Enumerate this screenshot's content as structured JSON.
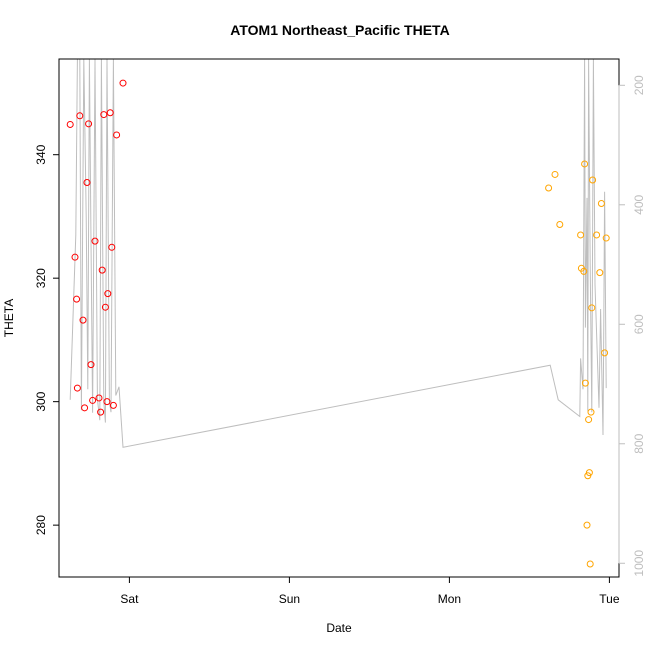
{
  "chart_data": {
    "type": "scatter",
    "title": "ATOM1 Northeast_Pacific THETA",
    "xlabel": "Date",
    "ylabel": "THETA",
    "x_ticks": [
      "Sat",
      "Sun",
      "Mon",
      "Tue"
    ],
    "x_tick_values": [
      1.0,
      2.0,
      3.0,
      4.0
    ],
    "xlim": [
      0.56,
      4.06
    ],
    "ylim": [
      271.6,
      355.5
    ],
    "y_ticks": [
      280,
      300,
      320,
      340
    ],
    "y2_label": "",
    "y2_ticks": [
      200,
      400,
      600,
      800,
      1000
    ],
    "y2lim": [
      1023,
      156
    ],
    "y2_reversed": true,
    "grid": false,
    "colors": {
      "profile_line": "#bebebe",
      "series_early": "#ff0000",
      "series_late": "#ffa500",
      "axis": "#000000",
      "right_axis": "#bebebe"
    },
    "series": [
      {
        "color": "#ff0000",
        "points": [
          {
            "x": 0.63,
            "y": 344.9
          },
          {
            "x": 0.66,
            "y": 323.4
          },
          {
            "x": 0.67,
            "y": 316.6
          },
          {
            "x": 0.675,
            "y": 302.2
          },
          {
            "x": 0.69,
            "y": 346.3
          },
          {
            "x": 0.71,
            "y": 313.2
          },
          {
            "x": 0.72,
            "y": 299.0
          },
          {
            "x": 0.735,
            "y": 335.5
          },
          {
            "x": 0.745,
            "y": 345.0
          },
          {
            "x": 0.76,
            "y": 306.0
          },
          {
            "x": 0.77,
            "y": 300.2
          },
          {
            "x": 0.785,
            "y": 326.0
          },
          {
            "x": 0.81,
            "y": 300.6
          },
          {
            "x": 0.82,
            "y": 298.3
          },
          {
            "x": 0.83,
            "y": 321.3
          },
          {
            "x": 0.84,
            "y": 346.5
          },
          {
            "x": 0.85,
            "y": 315.3
          },
          {
            "x": 0.86,
            "y": 300.0
          },
          {
            "x": 0.865,
            "y": 317.5
          },
          {
            "x": 0.88,
            "y": 346.8
          },
          {
            "x": 0.89,
            "y": 325.0
          },
          {
            "x": 0.9,
            "y": 299.4
          },
          {
            "x": 0.92,
            "y": 343.2
          },
          {
            "x": 0.96,
            "y": 351.6
          }
        ]
      },
      {
        "color": "#ffa500",
        "points": [
          {
            "x": 3.62,
            "y": 334.6
          },
          {
            "x": 3.66,
            "y": 336.8
          },
          {
            "x": 3.69,
            "y": 328.7
          },
          {
            "x": 3.82,
            "y": 327.0
          },
          {
            "x": 3.825,
            "y": 321.6
          },
          {
            "x": 3.84,
            "y": 321.1
          },
          {
            "x": 3.845,
            "y": 338.5
          },
          {
            "x": 3.85,
            "y": 303.0
          },
          {
            "x": 3.86,
            "y": 280.0
          },
          {
            "x": 3.865,
            "y": 288.0
          },
          {
            "x": 3.87,
            "y": 297.1
          },
          {
            "x": 3.875,
            "y": 288.5
          },
          {
            "x": 3.88,
            "y": 273.7
          },
          {
            "x": 3.885,
            "y": 298.3
          },
          {
            "x": 3.89,
            "y": 315.2
          },
          {
            "x": 3.895,
            "y": 335.9
          },
          {
            "x": 3.92,
            "y": 327.0
          },
          {
            "x": 3.94,
            "y": 320.9
          },
          {
            "x": 3.95,
            "y": 332.1
          },
          {
            "x": 3.97,
            "y": 307.9
          },
          {
            "x": 3.98,
            "y": 326.5
          }
        ]
      }
    ],
    "profile_line": [
      [
        0.63,
        300.3
      ],
      [
        0.665,
        327.0
      ],
      [
        0.675,
        355.5
      ],
      [
        0.69,
        355.5
      ],
      [
        0.7,
        298.6
      ],
      [
        0.715,
        355.5
      ],
      [
        0.73,
        330.0
      ],
      [
        0.74,
        302.0
      ],
      [
        0.75,
        355.5
      ],
      [
        0.76,
        326.0
      ],
      [
        0.77,
        298.2
      ],
      [
        0.785,
        355.5
      ],
      [
        0.8,
        300.4
      ],
      [
        0.815,
        297.0
      ],
      [
        0.825,
        355.5
      ],
      [
        0.84,
        300.0
      ],
      [
        0.85,
        296.6
      ],
      [
        0.86,
        355.5
      ],
      [
        0.875,
        300.0
      ],
      [
        0.885,
        298.3
      ],
      [
        0.9,
        355.5
      ],
      [
        0.915,
        301.0
      ],
      [
        0.935,
        302.4
      ],
      [
        0.96,
        292.6
      ],
      [
        3.63,
        305.9
      ],
      [
        3.68,
        300.3
      ],
      [
        3.815,
        297.6
      ],
      [
        3.82,
        307.0
      ],
      [
        3.835,
        302.0
      ],
      [
        3.845,
        355.5
      ],
      [
        3.85,
        312.0
      ],
      [
        3.86,
        333.0
      ],
      [
        3.865,
        298.5
      ],
      [
        3.87,
        355.5
      ],
      [
        3.88,
        322.0
      ],
      [
        3.89,
        298.3
      ],
      [
        3.9,
        355.5
      ],
      [
        3.91,
        319.0
      ],
      [
        3.925,
        307.0
      ],
      [
        3.935,
        299.0
      ],
      [
        3.945,
        315.0
      ],
      [
        3.96,
        294.6
      ],
      [
        3.965,
        312.7
      ],
      [
        3.97,
        334.0
      ],
      [
        3.98,
        302.2
      ]
    ]
  }
}
